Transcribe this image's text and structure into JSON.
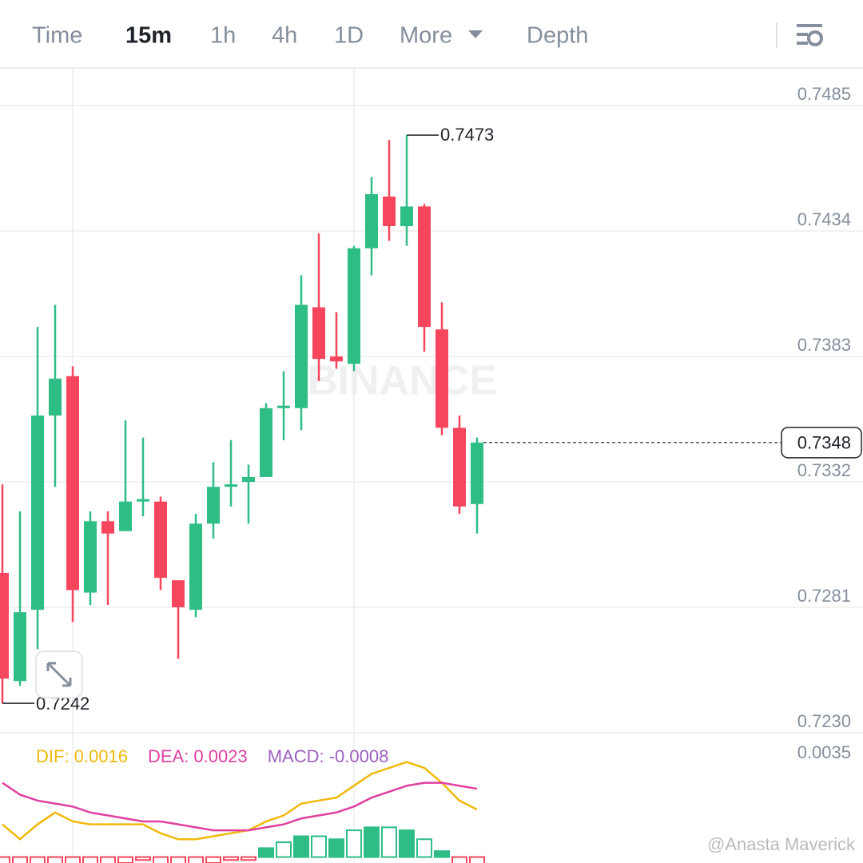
{
  "tabs": [
    "Time",
    "15m",
    "1h",
    "4h",
    "1D",
    "More",
    "Depth"
  ],
  "active_tab": "15m",
  "watermark": "BINANCE",
  "credit": "@Anasta Maverick",
  "chart_data": [
    {
      "type": "candlestick",
      "up_color": "#2ebd85",
      "down_color": "#f6465d",
      "ylim": [
        0.723,
        0.75
      ],
      "yticks": [
        0.7485,
        0.7434,
        0.7383,
        0.7332,
        0.7281,
        {
          "value": 0.723,
          "label": "0.7230"
        }
      ],
      "grid": true,
      "candles": [
        {
          "open": 0.7295,
          "high": 0.7331,
          "low": 0.7242,
          "close": 0.7252
        },
        {
          "open": 0.7251,
          "high": 0.732,
          "low": 0.7249,
          "close": 0.7279
        },
        {
          "open": 0.728,
          "high": 0.7395,
          "low": 0.7264,
          "close": 0.7359
        },
        {
          "open": 0.7359,
          "high": 0.7404,
          "low": 0.733,
          "close": 0.7374
        },
        {
          "open": 0.7375,
          "high": 0.7379,
          "low": 0.7275,
          "close": 0.7288
        },
        {
          "open": 0.7287,
          "high": 0.732,
          "low": 0.7282,
          "close": 0.7316
        },
        {
          "open": 0.7316,
          "high": 0.732,
          "low": 0.7282,
          "close": 0.7311
        },
        {
          "open": 0.7312,
          "high": 0.7357,
          "low": 0.7312,
          "close": 0.7324
        },
        {
          "open": 0.7324,
          "high": 0.735,
          "low": 0.7318,
          "close": 0.7325
        },
        {
          "open": 0.7324,
          "high": 0.7326,
          "low": 0.7288,
          "close": 0.7293
        },
        {
          "open": 0.7292,
          "high": 0.7292,
          "low": 0.726,
          "close": 0.7281
        },
        {
          "open": 0.728,
          "high": 0.7319,
          "low": 0.7277,
          "close": 0.7315
        },
        {
          "open": 0.7315,
          "high": 0.734,
          "low": 0.7309,
          "close": 0.733
        },
        {
          "open": 0.733,
          "high": 0.7349,
          "low": 0.7322,
          "close": 0.7331
        },
        {
          "open": 0.7332,
          "high": 0.7339,
          "low": 0.7315,
          "close": 0.7334
        },
        {
          "open": 0.7334,
          "high": 0.7364,
          "low": 0.7334,
          "close": 0.7362
        },
        {
          "open": 0.7362,
          "high": 0.7377,
          "low": 0.7349,
          "close": 0.7363
        },
        {
          "open": 0.7362,
          "high": 0.7416,
          "low": 0.7353,
          "close": 0.7404
        },
        {
          "open": 0.7403,
          "high": 0.7433,
          "low": 0.7373,
          "close": 0.7382
        },
        {
          "open": 0.7383,
          "high": 0.7401,
          "low": 0.7378,
          "close": 0.7381
        },
        {
          "open": 0.738,
          "high": 0.7428,
          "low": 0.7377,
          "close": 0.7427
        },
        {
          "open": 0.7427,
          "high": 0.7456,
          "low": 0.7416,
          "close": 0.7449
        },
        {
          "open": 0.7448,
          "high": 0.7471,
          "low": 0.743,
          "close": 0.7436
        },
        {
          "open": 0.7436,
          "high": 0.7473,
          "low": 0.7428,
          "close": 0.7444
        },
        {
          "open": 0.7444,
          "high": 0.7445,
          "low": 0.7385,
          "close": 0.7395
        },
        {
          "open": 0.7394,
          "high": 0.7405,
          "low": 0.7351,
          "close": 0.7354
        },
        {
          "open": 0.7354,
          "high": 0.7359,
          "low": 0.7319,
          "close": 0.7322
        },
        {
          "open": 0.7323,
          "high": 0.735,
          "low": 0.7311,
          "close": 0.7348
        }
      ]
    },
    {
      "type": "macd",
      "ylim": [
        -0.0002,
        0.0037
      ],
      "yticks": [
        0.0035
      ],
      "legend": [
        {
          "text": "DIF: 0.0016",
          "color": "#f0b90b"
        },
        {
          "text": "DEA: 0.0023",
          "color": "#e040a0"
        },
        {
          "text": "MACD: -0.0008",
          "color": "#9c5fc0"
        }
      ],
      "series": [
        {
          "name": "DIF",
          "color": "#f0b90b",
          "values": [
            0.0011,
            0.0006,
            0.0011,
            0.0015,
            0.0012,
            0.0011,
            0.0011,
            0.0011,
            0.0011,
            0.0008,
            0.0006,
            0.0006,
            0.0007,
            0.0008,
            0.0009,
            0.0012,
            0.0014,
            0.0018,
            0.0019,
            0.002,
            0.0024,
            0.0028,
            0.003,
            0.0032,
            0.003,
            0.0025,
            0.0019,
            0.0016
          ]
        },
        {
          "name": "DEA",
          "color": "#e040a0",
          "values": [
            0.0025,
            0.0021,
            0.0019,
            0.0018,
            0.0017,
            0.0015,
            0.0014,
            0.0013,
            0.0012,
            0.0012,
            0.0011,
            0.001,
            0.0009,
            0.0009,
            0.0009,
            0.001,
            0.0011,
            0.0013,
            0.0014,
            0.0015,
            0.0017,
            0.002,
            0.0022,
            0.0024,
            0.0025,
            0.0025,
            0.0024,
            0.0023
          ]
        }
      ],
      "histogram": {
        "name": "MACD",
        "up_color": "#2ebd85",
        "down_color": "#f6465d",
        "values": [
          -0.0014,
          -0.0015,
          -0.0008,
          -0.0003,
          -0.0005,
          -0.0004,
          -0.0003,
          -0.0002,
          -0.0001,
          -0.0004,
          -0.0005,
          -0.0004,
          -0.0002,
          -0.0001,
          -0.0001,
          0.0003,
          0.0005,
          0.0007,
          0.0007,
          0.0006,
          0.0009,
          0.001,
          0.001,
          0.0009,
          0.0006,
          0.0002,
          -0.0006,
          -0.0008
        ]
      }
    }
  ]
}
